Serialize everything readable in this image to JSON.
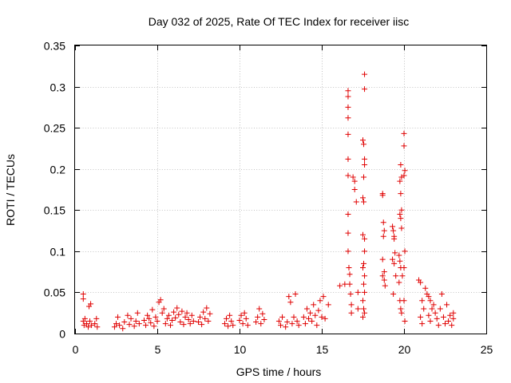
{
  "chart_data": {
    "type": "scatter",
    "title": "Day 032 of 2025, Rate Of TEC Index for receiver iisc",
    "xlabel": "GPS time / hours",
    "ylabel": "ROTI / TECUs",
    "xlim": [
      0,
      25
    ],
    "ylim": [
      0,
      0.35
    ],
    "xticks": [
      0,
      5,
      10,
      15,
      20,
      25
    ],
    "xtick_labels": [
      "0",
      "5",
      "10",
      "15",
      "20",
      "25"
    ],
    "yticks": [
      0,
      0.05,
      0.1,
      0.15,
      0.2,
      0.25,
      0.3,
      0.35
    ],
    "ytick_labels": [
      "0",
      "0.05",
      "0.1",
      "0.15",
      "0.2",
      "0.25",
      "0.3",
      "0.35"
    ],
    "grid": true,
    "marker": "+",
    "series": [
      {
        "name": "ROTI",
        "color": "#e00000",
        "points": [
          [
            0.5,
            0.048
          ],
          [
            0.5,
            0.042
          ],
          [
            0.5,
            0.015
          ],
          [
            0.55,
            0.01
          ],
          [
            0.6,
            0.018
          ],
          [
            0.7,
            0.012
          ],
          [
            0.8,
            0.008
          ],
          [
            0.85,
            0.033
          ],
          [
            0.95,
            0.036
          ],
          [
            0.9,
            0.015
          ],
          [
            1.0,
            0.01
          ],
          [
            1.2,
            0.012
          ],
          [
            1.3,
            0.018
          ],
          [
            1.35,
            0.008
          ],
          [
            2.4,
            0.008
          ],
          [
            2.5,
            0.012
          ],
          [
            2.6,
            0.02
          ],
          [
            2.7,
            0.01
          ],
          [
            2.9,
            0.006
          ],
          [
            3.0,
            0.014
          ],
          [
            3.2,
            0.022
          ],
          [
            3.3,
            0.011
          ],
          [
            3.4,
            0.018
          ],
          [
            3.6,
            0.009
          ],
          [
            3.7,
            0.015
          ],
          [
            3.8,
            0.025
          ],
          [
            3.9,
            0.012
          ],
          [
            4.2,
            0.016
          ],
          [
            4.3,
            0.01
          ],
          [
            4.4,
            0.022
          ],
          [
            4.5,
            0.018
          ],
          [
            4.6,
            0.013
          ],
          [
            4.7,
            0.029
          ],
          [
            4.8,
            0.009
          ],
          [
            4.9,
            0.02
          ],
          [
            5.0,
            0.015
          ],
          [
            5.1,
            0.038
          ],
          [
            5.2,
            0.041
          ],
          [
            5.3,
            0.025
          ],
          [
            5.4,
            0.03
          ],
          [
            5.5,
            0.012
          ],
          [
            5.6,
            0.018
          ],
          [
            5.7,
            0.022
          ],
          [
            5.8,
            0.01
          ],
          [
            5.9,
            0.016
          ],
          [
            6.0,
            0.026
          ],
          [
            6.1,
            0.019
          ],
          [
            6.2,
            0.031
          ],
          [
            6.3,
            0.023
          ],
          [
            6.4,
            0.014
          ],
          [
            6.5,
            0.027
          ],
          [
            6.6,
            0.011
          ],
          [
            6.7,
            0.02
          ],
          [
            6.8,
            0.025
          ],
          [
            6.9,
            0.017
          ],
          [
            7.0,
            0.012
          ],
          [
            7.1,
            0.022
          ],
          [
            7.2,
            0.015
          ],
          [
            7.5,
            0.014
          ],
          [
            7.6,
            0.02
          ],
          [
            7.7,
            0.011
          ],
          [
            7.8,
            0.026
          ],
          [
            7.9,
            0.018
          ],
          [
            8.0,
            0.031
          ],
          [
            8.1,
            0.015
          ],
          [
            8.2,
            0.024
          ],
          [
            9.1,
            0.012
          ],
          [
            9.2,
            0.018
          ],
          [
            9.3,
            0.009
          ],
          [
            9.4,
            0.022
          ],
          [
            9.5,
            0.015
          ],
          [
            9.6,
            0.01
          ],
          [
            10.0,
            0.016
          ],
          [
            10.1,
            0.022
          ],
          [
            10.2,
            0.012
          ],
          [
            10.3,
            0.025
          ],
          [
            10.4,
            0.018
          ],
          [
            10.5,
            0.01
          ],
          [
            11.0,
            0.014
          ],
          [
            11.1,
            0.02
          ],
          [
            11.2,
            0.03
          ],
          [
            11.3,
            0.012
          ],
          [
            11.4,
            0.024
          ],
          [
            11.5,
            0.017
          ],
          [
            12.4,
            0.015
          ],
          [
            12.5,
            0.01
          ],
          [
            12.6,
            0.02
          ],
          [
            12.8,
            0.008
          ],
          [
            12.9,
            0.014
          ],
          [
            13.0,
            0.045
          ],
          [
            13.1,
            0.038
          ],
          [
            13.2,
            0.012
          ],
          [
            13.3,
            0.02
          ],
          [
            13.4,
            0.048
          ],
          [
            13.5,
            0.015
          ],
          [
            13.6,
            0.01
          ],
          [
            13.9,
            0.02
          ],
          [
            14.0,
            0.012
          ],
          [
            14.1,
            0.03
          ],
          [
            14.2,
            0.018
          ],
          [
            14.3,
            0.025
          ],
          [
            14.4,
            0.015
          ],
          [
            14.5,
            0.035
          ],
          [
            14.6,
            0.022
          ],
          [
            14.7,
            0.01
          ],
          [
            14.8,
            0.028
          ],
          [
            14.9,
            0.04
          ],
          [
            15.0,
            0.02
          ],
          [
            15.1,
            0.045
          ],
          [
            15.2,
            0.018
          ],
          [
            15.4,
            0.035
          ],
          [
            16.1,
            0.058
          ],
          [
            16.4,
            0.06
          ],
          [
            16.6,
            0.295
          ],
          [
            16.6,
            0.288
          ],
          [
            16.6,
            0.275
          ],
          [
            16.6,
            0.262
          ],
          [
            16.6,
            0.242
          ],
          [
            16.6,
            0.212
          ],
          [
            16.6,
            0.192
          ],
          [
            16.6,
            0.145
          ],
          [
            16.6,
            0.122
          ],
          [
            16.6,
            0.1
          ],
          [
            16.65,
            0.08
          ],
          [
            16.7,
            0.072
          ],
          [
            16.7,
            0.06
          ],
          [
            16.75,
            0.048
          ],
          [
            16.8,
            0.035
          ],
          [
            16.8,
            0.025
          ],
          [
            16.9,
            0.19
          ],
          [
            17.0,
            0.185
          ],
          [
            17.0,
            0.175
          ],
          [
            17.1,
            0.16
          ],
          [
            17.2,
            0.05
          ],
          [
            17.2,
            0.03
          ],
          [
            17.5,
            0.235
          ],
          [
            17.55,
            0.23
          ],
          [
            17.6,
            0.315
          ],
          [
            17.6,
            0.297
          ],
          [
            17.6,
            0.212
          ],
          [
            17.6,
            0.205
          ],
          [
            17.55,
            0.19
          ],
          [
            17.5,
            0.165
          ],
          [
            17.55,
            0.16
          ],
          [
            17.5,
            0.12
          ],
          [
            17.6,
            0.115
          ],
          [
            17.6,
            0.1
          ],
          [
            17.55,
            0.085
          ],
          [
            17.5,
            0.08
          ],
          [
            17.6,
            0.07
          ],
          [
            17.55,
            0.06
          ],
          [
            17.6,
            0.05
          ],
          [
            17.5,
            0.04
          ],
          [
            17.55,
            0.03
          ],
          [
            17.6,
            0.025
          ],
          [
            17.5,
            0.02
          ],
          [
            18.7,
            0.17
          ],
          [
            18.7,
            0.168
          ],
          [
            18.75,
            0.135
          ],
          [
            18.8,
            0.125
          ],
          [
            18.75,
            0.118
          ],
          [
            18.7,
            0.09
          ],
          [
            18.8,
            0.075
          ],
          [
            18.7,
            0.07
          ],
          [
            18.8,
            0.065
          ],
          [
            18.85,
            0.058
          ],
          [
            19.3,
            0.13
          ],
          [
            19.35,
            0.125
          ],
          [
            19.4,
            0.118
          ],
          [
            19.4,
            0.115
          ],
          [
            19.45,
            0.098
          ],
          [
            19.3,
            0.09
          ],
          [
            19.4,
            0.085
          ],
          [
            19.5,
            0.07
          ],
          [
            19.35,
            0.048
          ],
          [
            19.8,
            0.205
          ],
          [
            19.85,
            0.19
          ],
          [
            19.75,
            0.185
          ],
          [
            19.8,
            0.17
          ],
          [
            19.85,
            0.15
          ],
          [
            19.75,
            0.145
          ],
          [
            19.8,
            0.14
          ],
          [
            19.85,
            0.128
          ],
          [
            19.7,
            0.095
          ],
          [
            19.75,
            0.088
          ],
          [
            19.8,
            0.08
          ],
          [
            19.9,
            0.07
          ],
          [
            19.7,
            0.062
          ],
          [
            19.75,
            0.04
          ],
          [
            19.8,
            0.03
          ],
          [
            19.85,
            0.025
          ],
          [
            20.0,
            0.243
          ],
          [
            20.0,
            0.228
          ],
          [
            20.05,
            0.198
          ],
          [
            20.0,
            0.192
          ],
          [
            20.05,
            0.1
          ],
          [
            20.0,
            0.08
          ],
          [
            20.0,
            0.04
          ],
          [
            20.05,
            0.015
          ],
          [
            20.9,
            0.065
          ],
          [
            21.0,
            0.062
          ],
          [
            21.1,
            0.04
          ],
          [
            21.2,
            0.03
          ],
          [
            21.0,
            0.02
          ],
          [
            21.1,
            0.012
          ],
          [
            21.3,
            0.055
          ],
          [
            21.4,
            0.048
          ],
          [
            21.5,
            0.045
          ],
          [
            21.6,
            0.04
          ],
          [
            21.7,
            0.03
          ],
          [
            21.5,
            0.022
          ],
          [
            21.6,
            0.015
          ],
          [
            21.8,
            0.035
          ],
          [
            21.9,
            0.025
          ],
          [
            22.0,
            0.018
          ],
          [
            22.1,
            0.01
          ],
          [
            22.2,
            0.03
          ],
          [
            22.3,
            0.048
          ],
          [
            22.4,
            0.02
          ],
          [
            22.5,
            0.012
          ],
          [
            22.6,
            0.035
          ],
          [
            22.7,
            0.015
          ],
          [
            22.8,
            0.022
          ],
          [
            22.9,
            0.01
          ],
          [
            23.0,
            0.025
          ],
          [
            23.0,
            0.018
          ]
        ]
      }
    ]
  }
}
